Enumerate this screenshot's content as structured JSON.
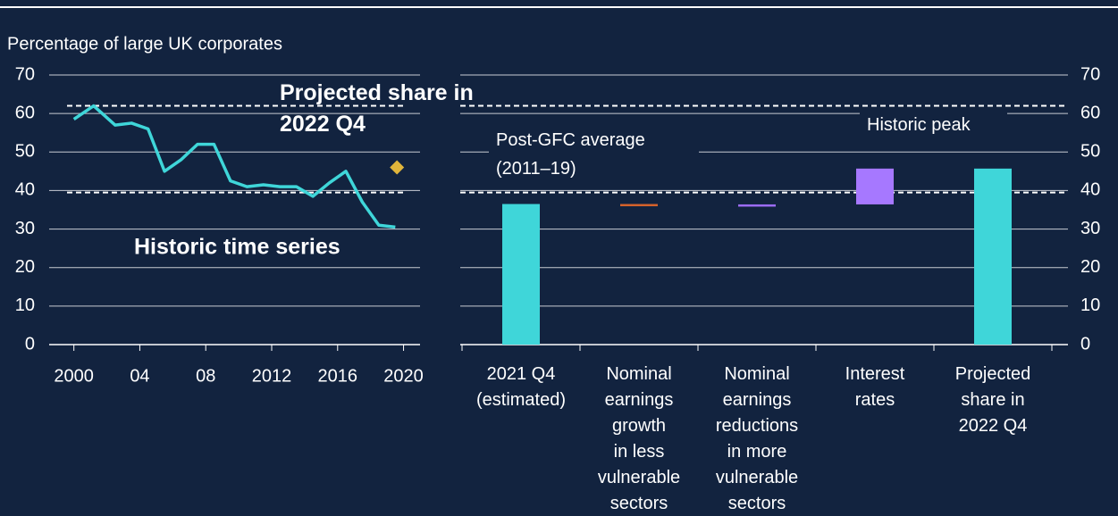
{
  "chart_data": [
    {
      "type": "line",
      "y_label": "Percentage of large UK corporates",
      "x": [
        2000,
        2001.2,
        2002.5,
        2003.5,
        2004.5,
        2005.5,
        2006.5,
        2007.5,
        2008.5,
        2009.5,
        2010.5,
        2011.5,
        2012.5,
        2013.5,
        2014.5,
        2015.5,
        2016.5,
        2017.5,
        2018.5,
        2019.5
      ],
      "series": [
        {
          "name": "Historic time series",
          "color": "#3fd6d9",
          "values": [
            58.5,
            62,
            57,
            57.5,
            56,
            45,
            48,
            52,
            52,
            42.5,
            41,
            41.5,
            41,
            41,
            38.5,
            42,
            45,
            37,
            31,
            30.5
          ]
        }
      ],
      "projection": {
        "name": "Projected share in\n2022 Q4",
        "color": "#e0b53b",
        "x": 2019.6,
        "value": 46
      },
      "reference_lines": [
        62,
        39.5
      ],
      "xlim": [
        1998.5,
        2021
      ],
      "xticks": [
        2000,
        {
          "value": 2004,
          "label": "04"
        },
        {
          "value": 2008,
          "label": "08"
        },
        2012,
        2016,
        2020
      ],
      "ylim": [
        0,
        70
      ],
      "yticks": [
        0,
        10,
        20,
        30,
        40,
        50,
        60,
        70
      ],
      "grid": true,
      "yaxis_side": "left"
    },
    {
      "type": "waterfall",
      "categories": [
        "2021 Q4\n(estimated)",
        "Nominal\nearnings\ngrowth\nin less\nvulnerable\nsectors",
        "Nominal\nearnings\nreductions\nin more\nvulnerable\nsectors",
        "Interest\nrates",
        "Projected\nshare in\n2022 Q4"
      ],
      "values": [
        36.5,
        -0.3,
        0.2,
        9.3,
        45.7
      ],
      "bar_kinds": [
        "total",
        "change",
        "change",
        "change",
        "total"
      ],
      "colors": [
        "#3fd6d9",
        "#d4622b",
        "#9b6cf5",
        "#a678ff",
        "#3fd6d9"
      ],
      "reference_lines": [
        {
          "value": 62,
          "label": "Historic peak"
        },
        {
          "value": 39.5,
          "label": "Post-GFC average\n(2011–19)"
        }
      ],
      "ylim": [
        0,
        70
      ],
      "yticks": [
        0,
        10,
        20,
        30,
        40,
        50,
        60,
        70
      ],
      "grid": true,
      "yaxis_side": "right"
    }
  ]
}
